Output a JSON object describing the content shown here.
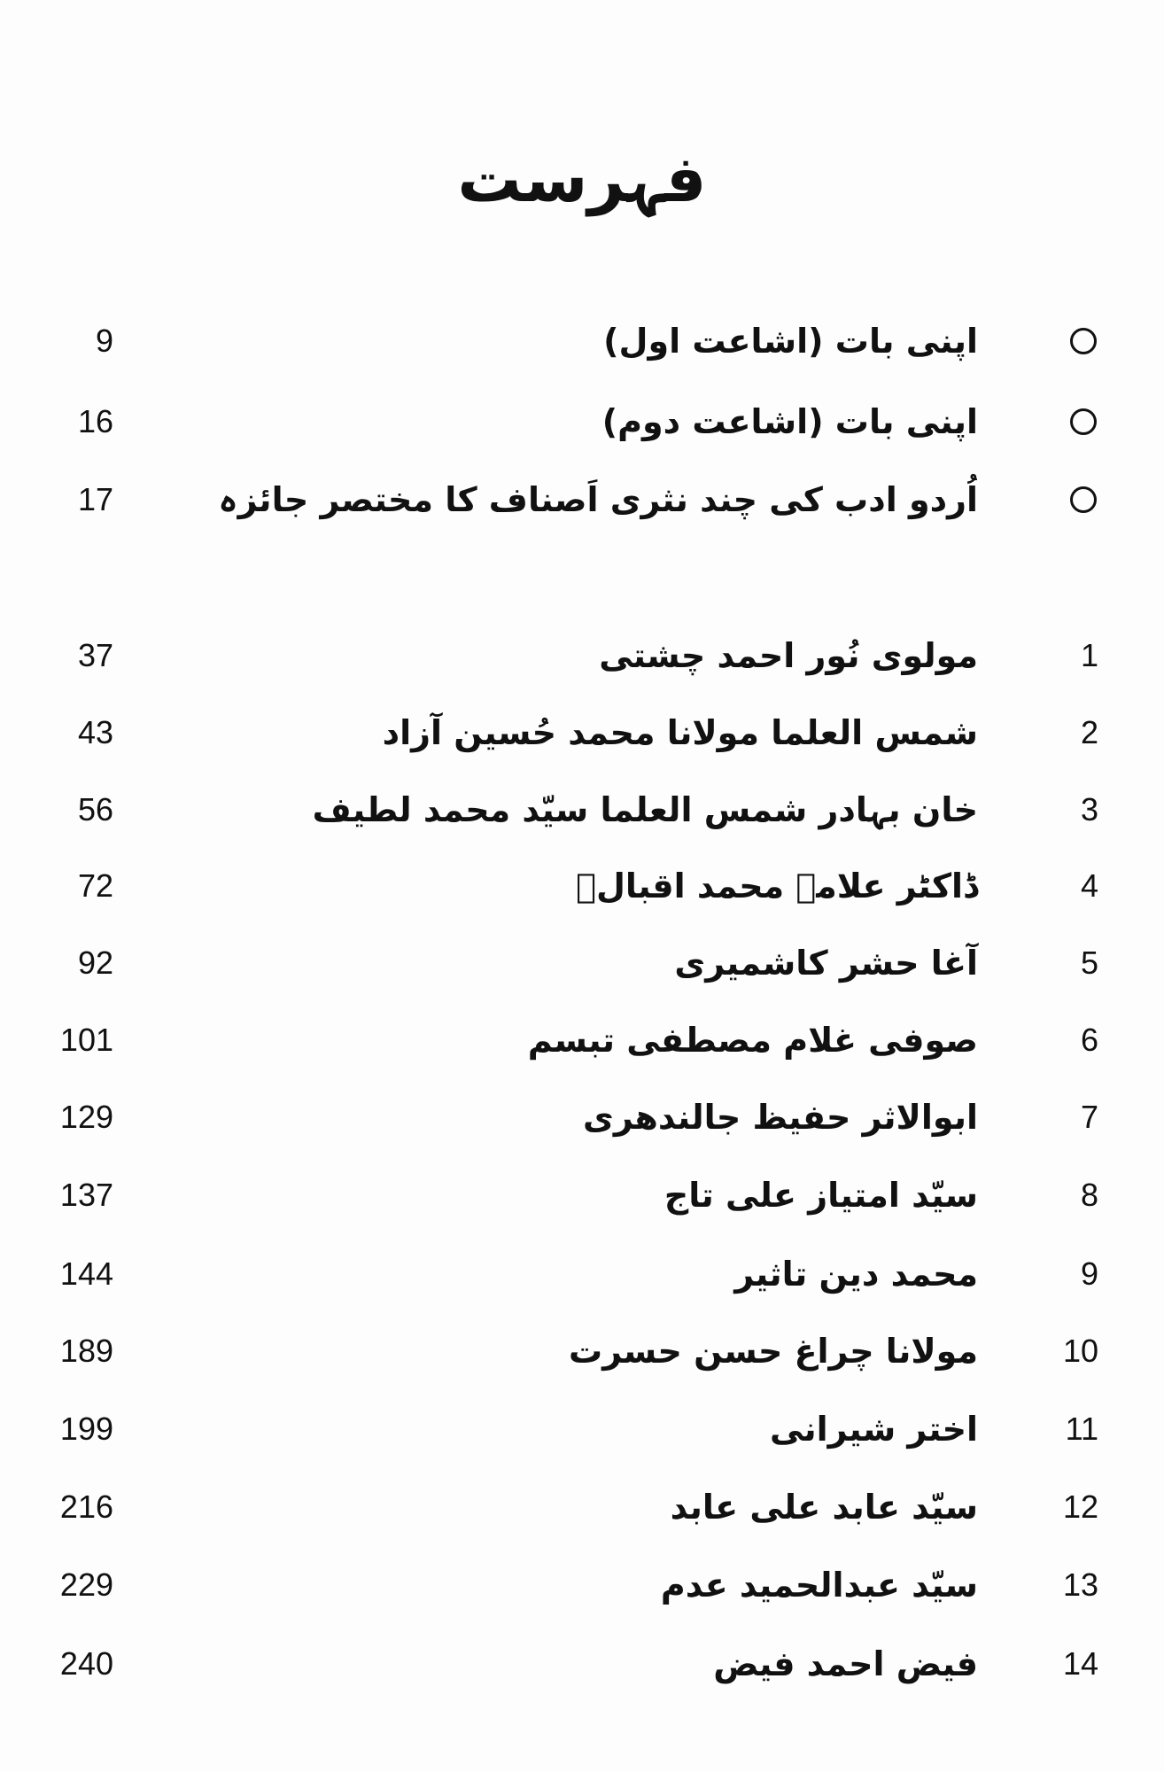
{
  "title": "فہرست",
  "preface_items": [
    {
      "marker_icon": "circle-bullet-icon",
      "label": "اپنی بات (اشاعت اول)",
      "page": "9"
    },
    {
      "marker_icon": "circle-bullet-icon",
      "label": "اپنی بات (اشاعت دوم)",
      "page": "16"
    },
    {
      "marker_icon": "circle-bullet-icon",
      "label": "اُردو ادب کی چند نثری اَصناف کا مختصر جائزہ",
      "page": "17"
    }
  ],
  "chapters": [
    {
      "number": "1",
      "label": "مولوی نُور احمد چشتی",
      "page": "37"
    },
    {
      "number": "2",
      "label": "شمس العلما مولانا محمد حُسین آزاد",
      "page": "43"
    },
    {
      "number": "3",
      "label": "خان بہادر شمس العلما سیّد محمد لطیف",
      "page": "56"
    },
    {
      "number": "4",
      "label": "ڈاکٹر علامہ محمد اقبالؒ",
      "page": "72"
    },
    {
      "number": "5",
      "label": "آغا حشر کاشمیری",
      "page": "92"
    },
    {
      "number": "6",
      "label": "صوفی غلام مصطفی تبسم",
      "page": "101"
    },
    {
      "number": "7",
      "label": "ابوالاثر حفیظ جالندھری",
      "page": "129"
    },
    {
      "number": "8",
      "label": "سیّد امتیاز علی تاج",
      "page": "137"
    },
    {
      "number": "9",
      "label": "محمد دین تاثیر",
      "page": "144"
    },
    {
      "number": "10",
      "label": "مولانا چراغ حسن حسرت",
      "page": "189"
    },
    {
      "number": "11",
      "label": "اختر شیرانی",
      "page": "199"
    },
    {
      "number": "12",
      "label": "سیّد عابد علی عابد",
      "page": "216"
    },
    {
      "number": "13",
      "label": "سیّد عبدالحمید عدم",
      "page": "229"
    },
    {
      "number": "14",
      "label": "فیض احمد فیض",
      "page": "240"
    }
  ]
}
